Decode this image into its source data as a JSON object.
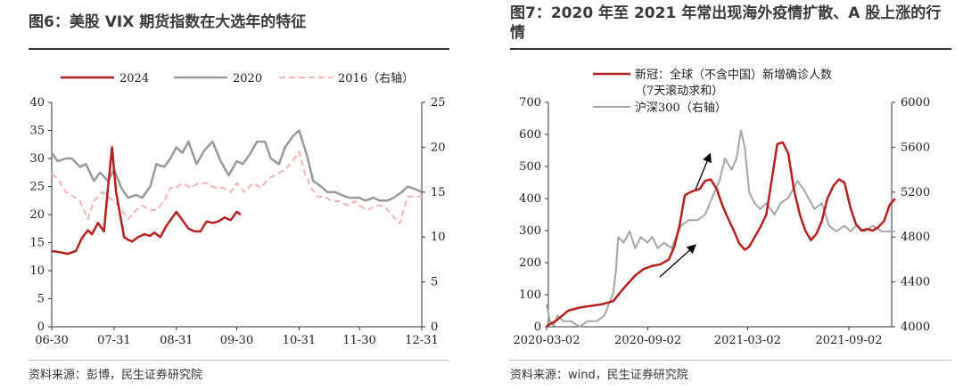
{
  "left": {
    "title": "图6：美股 VIX 期货指数在大选年的特征",
    "source": "资料来源：彭博，民生证券研究院"
  },
  "right": {
    "title": "图7：2020 年至 2021 年常出现海外疫情扩散、A 股上涨的行情",
    "source": "资料来源：wind，民生证券研究院"
  },
  "chart_data": [
    {
      "type": "line",
      "title": "图6：美股 VIX 期货指数在大选年的特征",
      "x_ticks": [
        "06-30",
        "07-31",
        "08-31",
        "09-30",
        "10-31",
        "11-30",
        "12-31"
      ],
      "ylim": [
        0,
        40
      ],
      "y_ticks": [
        0,
        5,
        10,
        15,
        20,
        25,
        30,
        35,
        40
      ],
      "y2lim": [
        0,
        25
      ],
      "y2_ticks": [
        0,
        5,
        10,
        15,
        20,
        25
      ],
      "legend_position": "top",
      "grid": false,
      "series": [
        {
          "name": "2024",
          "axis": "left",
          "color": "#b5201e",
          "style": "solid",
          "width": 2.5,
          "x": [
            "06-30",
            "07-04",
            "07-08",
            "07-12",
            "07-15",
            "07-18",
            "07-20",
            "07-23",
            "07-26",
            "07-28",
            "07-30",
            "07-31",
            "08-01",
            "08-02",
            "08-05",
            "08-07",
            "08-09",
            "08-12",
            "08-15",
            "08-18",
            "08-20",
            "08-23",
            "08-26",
            "08-29",
            "08-31",
            "09-03",
            "09-06",
            "09-09",
            "09-12",
            "09-15",
            "09-18",
            "09-21",
            "09-24",
            "09-27",
            "09-30",
            "10-02"
          ],
          "y": [
            13.5,
            13.3,
            13.0,
            13.5,
            15.8,
            17.2,
            16.5,
            18.5,
            17.0,
            25.0,
            32.0,
            28.0,
            24.0,
            22.0,
            16.0,
            15.5,
            15.2,
            16.0,
            16.5,
            16.2,
            16.8,
            16.0,
            18.0,
            19.5,
            20.5,
            19.0,
            17.5,
            17.0,
            17.0,
            18.8,
            18.5,
            18.8,
            19.5,
            19.0,
            20.5,
            20.0
          ]
        },
        {
          "name": "2020",
          "axis": "left",
          "color": "#9a9a9a",
          "style": "solid",
          "width": 2.5,
          "x": [
            "06-30",
            "07-03",
            "07-07",
            "07-10",
            "07-14",
            "07-17",
            "07-21",
            "07-24",
            "07-28",
            "07-31",
            "08-04",
            "08-07",
            "08-11",
            "08-14",
            "08-18",
            "08-21",
            "08-25",
            "08-28",
            "08-31",
            "09-03",
            "09-06",
            "09-10",
            "09-14",
            "09-18",
            "09-22",
            "09-26",
            "09-30",
            "10-03",
            "10-07",
            "10-10",
            "10-14",
            "10-17",
            "10-21",
            "10-24",
            "10-28",
            "10-31",
            "11-04",
            "11-07",
            "11-11",
            "11-14",
            "11-18",
            "11-21",
            "11-25",
            "11-28",
            "11-30",
            "12-03",
            "12-07",
            "12-10",
            "12-14",
            "12-17",
            "12-21",
            "12-24",
            "12-28",
            "12-31"
          ],
          "y": [
            31,
            29.5,
            30,
            30,
            28.5,
            29,
            26,
            27.5,
            26,
            28,
            24.5,
            23,
            23.5,
            23,
            25,
            29,
            28.5,
            30,
            32,
            31,
            33,
            29,
            31.5,
            33,
            29.5,
            27,
            29.5,
            29,
            31,
            33,
            33,
            30,
            29,
            32,
            34,
            35,
            30.5,
            26,
            25,
            24,
            24,
            23.5,
            23,
            23,
            23,
            22.5,
            23,
            22.5,
            22.5,
            23,
            24,
            25,
            24.5,
            24
          ]
        },
        {
          "name": "2016（右轴）",
          "axis": "right",
          "color": "#f1b5b2",
          "style": "dashed",
          "width": 2,
          "x": [
            "06-30",
            "07-03",
            "07-07",
            "07-11",
            "07-14",
            "07-18",
            "07-21",
            "07-25",
            "07-28",
            "07-31",
            "08-04",
            "08-07",
            "08-11",
            "08-14",
            "08-18",
            "08-21",
            "08-25",
            "08-28",
            "08-31",
            "09-03",
            "09-07",
            "09-11",
            "09-15",
            "09-19",
            "09-23",
            "09-27",
            "09-30",
            "10-04",
            "10-08",
            "10-12",
            "10-16",
            "10-20",
            "10-24",
            "10-28",
            "10-31",
            "11-03",
            "11-06",
            "11-09",
            "11-13",
            "11-16",
            "11-20",
            "11-24",
            "11-28",
            "11-30",
            "12-04",
            "12-08",
            "12-12",
            "12-16",
            "12-20",
            "12-24",
            "12-28",
            "12-31"
          ],
          "y": [
            17,
            16.5,
            15,
            14.5,
            14,
            12,
            14,
            15,
            14.5,
            14,
            13,
            12,
            13,
            13.5,
            13,
            13,
            14,
            15.5,
            15.5,
            16,
            15.5,
            16,
            16,
            15.5,
            15.5,
            15,
            16,
            15,
            16,
            15.5,
            16.5,
            17,
            17.5,
            18.5,
            19.5,
            17,
            15.5,
            14.5,
            14.5,
            14,
            14,
            13.5,
            14,
            13.5,
            13,
            13.5,
            13.5,
            12.5,
            11.5,
            14.5,
            14.5,
            14.5
          ]
        }
      ]
    },
    {
      "type": "line",
      "title": "图7：2020 年至 2021 年常出现海外疫情扩散、A 股上涨的行情",
      "x_ticks": [
        "2020-03-02",
        "2020-09-02",
        "2021-03-02",
        "2021-09-02"
      ],
      "ylim": [
        0,
        700
      ],
      "y_ticks": [
        0,
        100,
        200,
        300,
        400,
        500,
        600,
        700
      ],
      "y2lim": [
        4000,
        6000
      ],
      "y2_ticks": [
        4000,
        4400,
        4800,
        5200,
        5600,
        6000
      ],
      "legend_position": "top",
      "grid": false,
      "annotations": [
        "up-arrow",
        "up-arrow"
      ],
      "series": [
        {
          "name": "新冠：全球（不含中国）新增确诊人数（7天滚动求和）",
          "axis": "left",
          "color": "#b5201e",
          "style": "solid",
          "width": 2.5,
          "x": [
            "2020-03-02",
            "2020-03-20",
            "2020-04-10",
            "2020-05-01",
            "2020-05-20",
            "2020-06-10",
            "2020-07-01",
            "2020-07-20",
            "2020-08-10",
            "2020-08-25",
            "2020-09-10",
            "2020-09-25",
            "2020-10-10",
            "2020-10-20",
            "2020-10-30",
            "2020-11-08",
            "2020-11-18",
            "2020-11-26",
            "2020-12-05",
            "2020-12-15",
            "2020-12-25",
            "2021-01-05",
            "2021-01-15",
            "2021-01-25",
            "2021-02-05",
            "2021-02-15",
            "2021-02-25",
            "2021-03-05",
            "2021-03-15",
            "2021-03-25",
            "2021-04-05",
            "2021-04-15",
            "2021-04-25",
            "2021-05-05",
            "2021-05-15",
            "2021-05-25",
            "2021-06-05",
            "2021-06-15",
            "2021-06-25",
            "2021-07-05",
            "2021-07-15",
            "2021-07-25",
            "2021-08-05",
            "2021-08-15",
            "2021-08-25",
            "2021-09-05",
            "2021-09-15",
            "2021-09-25",
            "2021-10-05",
            "2021-10-15",
            "2021-10-25",
            "2021-11-05",
            "2021-11-15",
            "2021-11-25"
          ],
          "y": [
            2,
            20,
            50,
            60,
            65,
            70,
            80,
            120,
            160,
            180,
            190,
            195,
            210,
            250,
            320,
            410,
            420,
            425,
            430,
            455,
            460,
            430,
            380,
            340,
            300,
            260,
            240,
            250,
            280,
            310,
            350,
            460,
            570,
            575,
            540,
            430,
            350,
            300,
            270,
            290,
            330,
            400,
            440,
            460,
            450,
            370,
            320,
            300,
            305,
            300,
            310,
            330,
            380,
            400
          ]
        },
        {
          "name": "沪深300（右轴）",
          "axis": "right",
          "color": "#a6a6a6",
          "style": "solid",
          "width": 2,
          "x": [
            "2020-03-02",
            "2020-03-08",
            "2020-03-15",
            "2020-03-22",
            "2020-04-01",
            "2020-04-15",
            "2020-05-01",
            "2020-05-15",
            "2020-06-01",
            "2020-06-15",
            "2020-07-01",
            "2020-07-06",
            "2020-07-10",
            "2020-07-20",
            "2020-07-31",
            "2020-08-10",
            "2020-08-20",
            "2020-09-01",
            "2020-09-10",
            "2020-09-20",
            "2020-10-01",
            "2020-10-15",
            "2020-11-01",
            "2020-11-15",
            "2020-12-01",
            "2020-12-15",
            "2021-01-01",
            "2021-01-10",
            "2021-01-20",
            "2021-02-01",
            "2021-02-10",
            "2021-02-18",
            "2021-02-25",
            "2021-03-05",
            "2021-03-15",
            "2021-03-25",
            "2021-04-05",
            "2021-04-20",
            "2021-05-01",
            "2021-05-15",
            "2021-06-01",
            "2021-06-15",
            "2021-07-01",
            "2021-07-15",
            "2021-07-28",
            "2021-08-10",
            "2021-08-25",
            "2021-09-05",
            "2021-09-15",
            "2021-10-01",
            "2021-10-15",
            "2021-11-01",
            "2021-11-15",
            "2021-11-25"
          ],
          "y": [
            4200,
            4050,
            4010,
            4100,
            4050,
            4050,
            4000,
            4050,
            4050,
            4100,
            4300,
            4500,
            4800,
            4750,
            4850,
            4700,
            4800,
            4750,
            4800,
            4700,
            4750,
            4700,
            4900,
            4950,
            4950,
            5000,
            5200,
            5300,
            5500,
            5400,
            5500,
            5750,
            5600,
            5200,
            5100,
            5050,
            5100,
            5000,
            5100,
            5150,
            5300,
            5200,
            5050,
            5100,
            4900,
            4850,
            4900,
            4850,
            4900,
            4850,
            4900,
            4850,
            4850,
            4850
          ]
        }
      ]
    }
  ]
}
